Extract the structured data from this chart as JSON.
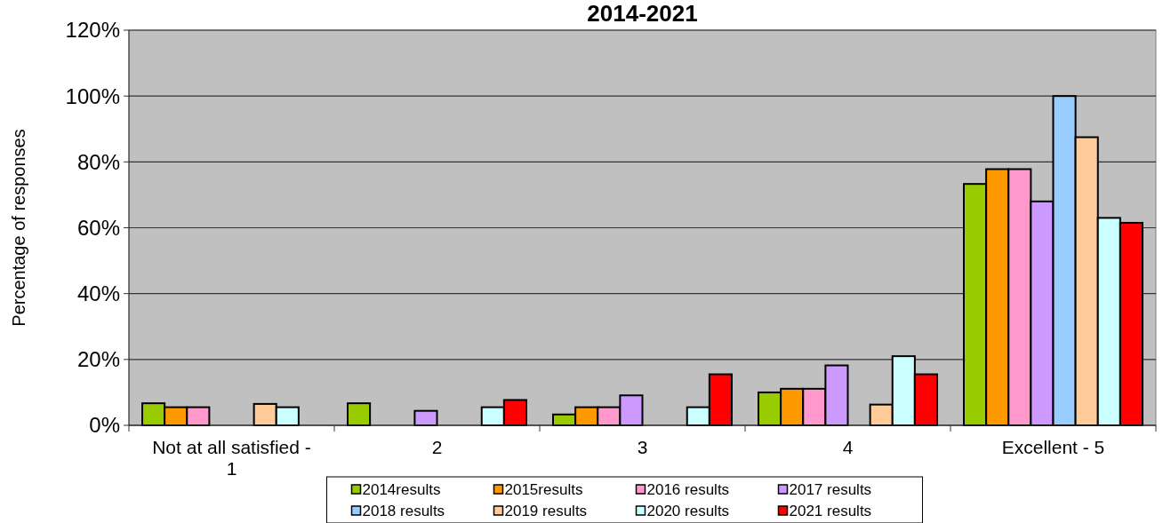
{
  "chart_data": {
    "type": "bar",
    "title": "2014-2021",
    "ylabel": "Percentage of responses",
    "categories": [
      "Not at all satisfied - 1",
      "2",
      "3",
      "4",
      "Excellent - 5"
    ],
    "series": [
      {
        "name": "2014results",
        "color": "#99cc00",
        "values": [
          6.7,
          6.7,
          3.3,
          10,
          73.3
        ]
      },
      {
        "name": "2015results",
        "color": "#ff9900",
        "values": [
          5.5,
          null,
          5.5,
          11.1,
          77.8
        ]
      },
      {
        "name": "2016 results",
        "color": "#ff99cc",
        "values": [
          5.5,
          null,
          5.5,
          11.1,
          77.8
        ]
      },
      {
        "name": "2017 results",
        "color": "#cc99ff",
        "values": [
          null,
          4.4,
          9.1,
          18.2,
          68
        ]
      },
      {
        "name": "2018 results",
        "color": "#99ccff",
        "values": [
          null,
          null,
          null,
          null,
          100
        ]
      },
      {
        "name": "2019 results",
        "color": "#ffcc99",
        "values": [
          6.5,
          null,
          null,
          6.3,
          87.5
        ]
      },
      {
        "name": "2020 results",
        "color": "#ccffff",
        "values": [
          5.5,
          5.5,
          5.5,
          21,
          63
        ]
      },
      {
        "name": "2021 results",
        "color": "#ff0000",
        "values": [
          null,
          7.7,
          15.5,
          15.5,
          61.5
        ]
      }
    ],
    "ylim": [
      0,
      120
    ],
    "yticks": [
      {
        "value": 0,
        "label": "0%"
      },
      {
        "value": 20,
        "label": "20%"
      },
      {
        "value": 40,
        "label": "40%"
      },
      {
        "value": 60,
        "label": "60%"
      },
      {
        "value": 80,
        "label": "80%"
      },
      {
        "value": 100,
        "label": "100%"
      },
      {
        "value": 120,
        "label": "120%"
      }
    ],
    "grid": "y",
    "legend": "bottom"
  }
}
